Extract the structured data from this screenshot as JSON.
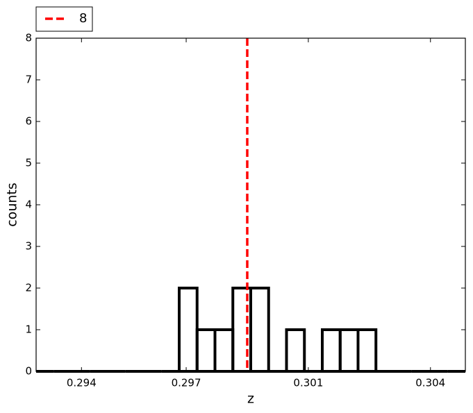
{
  "chart_data": {
    "type": "histogram",
    "bins": [
      0.2927,
      0.2932125,
      0.293725,
      0.2942375,
      0.29475,
      0.2952625,
      0.295775,
      0.2962875,
      0.2968,
      0.2973125,
      0.297825,
      0.2983375,
      0.29885,
      0.2993625,
      0.299875,
      0.3003875,
      0.3009,
      0.3014125,
      0.301925,
      0.3024375,
      0.30295,
      0.3034625,
      0.303975,
      0.3044875,
      0.305
    ],
    "values": [
      0,
      0,
      0,
      0,
      0,
      0,
      0,
      0,
      2,
      1,
      1,
      2,
      2,
      0,
      1,
      0,
      1,
      1,
      1,
      0,
      0,
      0,
      0,
      0
    ],
    "color": "#000000",
    "vline": {
      "name": "8",
      "value": 0.29875,
      "color": "#ff0000"
    },
    "xlabel": "z",
    "ylabel": "counts",
    "xlim": [
      0.2927,
      0.305
    ],
    "xticks": [
      0.294,
      0.297,
      {
        "value": 0.3005,
        "label": "0.301"
      },
      0.304
    ],
    "ylim": [
      0,
      8
    ],
    "yticks": [
      0,
      1,
      2,
      3,
      4,
      5,
      6,
      7,
      8
    ],
    "legend": "top-left-outside"
  }
}
